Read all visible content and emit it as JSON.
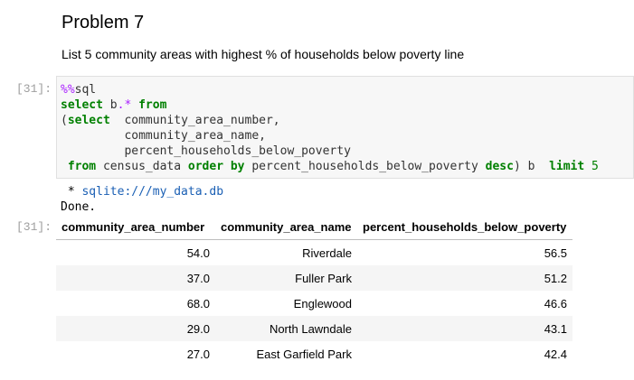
{
  "markdown": {
    "title": "Problem 7",
    "description": "List 5 community areas with highest % of households below poverty line"
  },
  "cell": {
    "in_prompt": "[31]:",
    "out_prompt": "[31]:",
    "code_lines": [
      "%%sql",
      "select b.* from",
      "(select  community_area_number,",
      "         community_area_name,",
      "         percent_households_below_poverty",
      " from census_data order by percent_households_below_poverty desc) b  limit 5"
    ],
    "stdout_prefix": " * ",
    "stdout_db": "sqlite:///my_data.db",
    "stdout_done": "Done."
  },
  "table": {
    "headers": [
      "community_area_number",
      "community_area_name",
      "percent_households_below_poverty"
    ],
    "rows": [
      [
        "54.0",
        "Riverdale",
        "56.5"
      ],
      [
        "37.0",
        "Fuller Park",
        "51.2"
      ],
      [
        "68.0",
        "Englewood",
        "46.6"
      ],
      [
        "29.0",
        "North Lawndale",
        "43.1"
      ],
      [
        "27.0",
        "East Garfield Park",
        "42.4"
      ]
    ]
  }
}
